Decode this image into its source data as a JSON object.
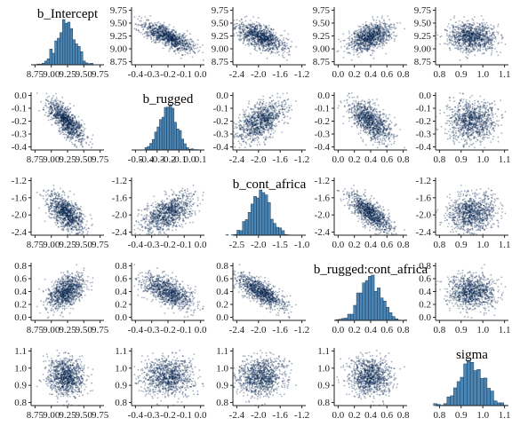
{
  "chart_data": {
    "type": "pairs",
    "colors": {
      "point": "#011f4b",
      "bar": "#4a86b5",
      "bar_edge": "#1f3a55"
    },
    "variables": [
      {
        "name": "b_Intercept",
        "mean": 9.23,
        "sd": 0.14,
        "ticks": [
          8.75,
          9.0,
          9.25,
          9.5,
          9.75
        ],
        "tick_labels": [
          "8.75",
          "9.00",
          "9.25",
          "9.50",
          "9.75"
        ],
        "hist_ticks": [
          8.75,
          9.0,
          9.25,
          9.5,
          9.75
        ],
        "hist_tick_labels": [
          "8.75",
          "9.00",
          "9.25",
          "9.50",
          "9.75"
        ]
      },
      {
        "name": "b_rugged",
        "mean": -0.2,
        "sd": 0.08,
        "ticks": [
          -0.4,
          -0.3,
          -0.2,
          -0.1,
          0.0
        ],
        "tick_labels": [
          "-0.4",
          "-0.3",
          "-0.2",
          "-0.1",
          "0.0"
        ],
        "hist_ticks": [
          -0.5,
          -0.4,
          -0.3,
          -0.2,
          -0.1,
          0.0,
          0.1
        ],
        "hist_tick_labels": [
          "-0.5",
          "-0.4",
          "-0.3",
          "-0.2",
          "-0.1",
          "0.0",
          "0.1"
        ]
      },
      {
        "name": "b_cont_africa",
        "mean": -1.95,
        "sd": 0.23,
        "ticks": [
          -2.4,
          -2.0,
          -1.6,
          -1.2
        ],
        "tick_labels": [
          "-2.4",
          "-2.0",
          "-1.6",
          "-1.2"
        ],
        "hist_ticks": [
          -2.5,
          -2.0,
          -1.5,
          -1.0
        ],
        "hist_tick_labels": [
          "-2.5",
          "-2.0",
          "-1.5",
          "-1.0"
        ]
      },
      {
        "name": "b_rugged:cont_africa",
        "mean": 0.39,
        "sd": 0.13,
        "ticks": [
          0.0,
          0.2,
          0.4,
          0.6,
          0.8
        ],
        "tick_labels": [
          "0.0",
          "0.2",
          "0.4",
          "0.6",
          "0.8"
        ],
        "hist_ticks": [
          0.0,
          0.2,
          0.4,
          0.6,
          0.8
        ],
        "hist_tick_labels": [
          "0.0",
          "0.2",
          "0.4",
          "0.6",
          "0.8"
        ]
      },
      {
        "name": "sigma",
        "mean": 0.95,
        "sd": 0.055,
        "ticks": [
          0.8,
          0.9,
          1.0,
          1.1
        ],
        "tick_labels": [
          "0.8",
          "0.9",
          "1.0",
          "1.1"
        ],
        "hist_ticks": [
          0.8,
          0.9,
          1.0,
          1.1
        ],
        "hist_tick_labels": [
          "0.8",
          "0.9",
          "1.0",
          "1.1"
        ]
      }
    ],
    "correlations": [
      [
        1.0,
        -0.75,
        -0.55,
        0.45,
        0.0
      ],
      [
        -0.75,
        1.0,
        0.45,
        -0.6,
        0.0
      ],
      [
        -0.55,
        0.45,
        1.0,
        -0.75,
        0.0
      ],
      [
        0.45,
        -0.6,
        -0.75,
        1.0,
        0.0
      ],
      [
        0.0,
        0.0,
        0.0,
        0.0,
        1.0
      ]
    ],
    "n_draws": 1000,
    "hist_bins": 25
  }
}
